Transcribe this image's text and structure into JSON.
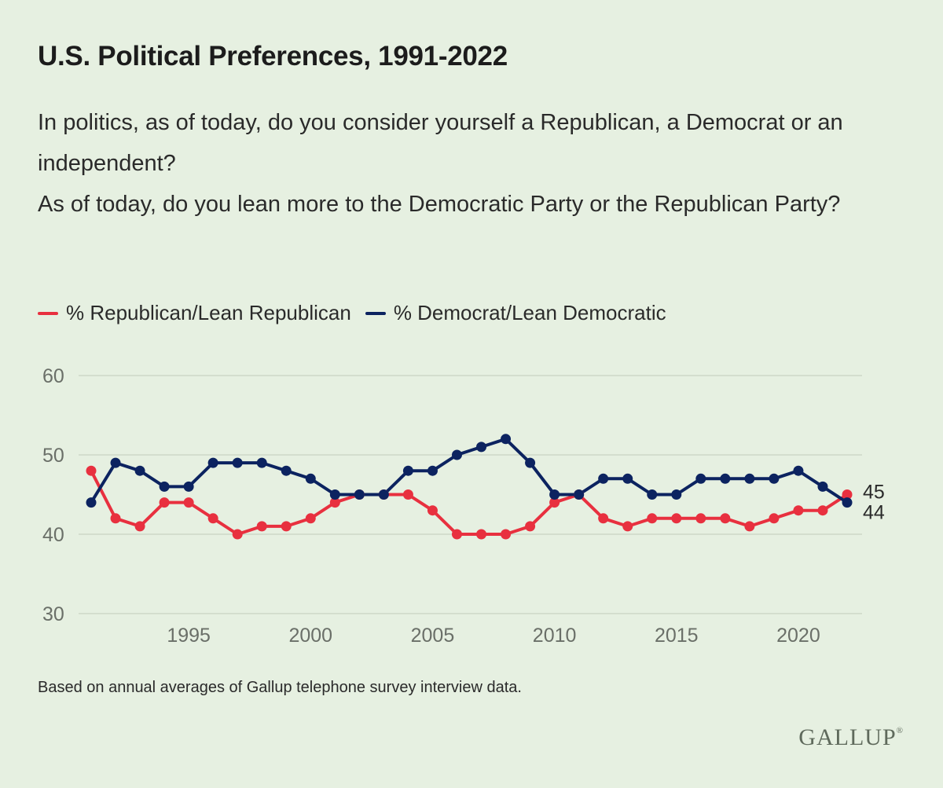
{
  "title": "U.S. Political Preferences, 1991-2022",
  "subtitle": {
    "line1": "In politics, as of today, do you consider yourself a Republican, a Democrat or an independent?",
    "line2": "As of today, do you lean more to the Democratic Party or the Republican Party?"
  },
  "legend": {
    "republican": "% Republican/Lean Republican",
    "democrat": "% Democrat/Lean Democratic"
  },
  "footnote": "Based on annual averages of Gallup telephone survey interview data.",
  "logo": "GALLUP",
  "colors": {
    "background": "#e6f0e1",
    "republican": "#e8303f",
    "democrat": "#0c2360",
    "grid": "#c9d3c4",
    "tick_label": "#6a6f68"
  },
  "chart_data": {
    "type": "line",
    "x": [
      1991,
      1992,
      1993,
      1994,
      1995,
      1996,
      1997,
      1998,
      1999,
      2000,
      2001,
      2002,
      2003,
      2004,
      2005,
      2006,
      2007,
      2008,
      2009,
      2010,
      2011,
      2012,
      2013,
      2014,
      2015,
      2016,
      2017,
      2018,
      2019,
      2020,
      2021,
      2022
    ],
    "series": [
      {
        "name": "% Republican/Lean Republican",
        "color": "#e8303f",
        "values": [
          48,
          42,
          41,
          44,
          44,
          42,
          40,
          41,
          41,
          42,
          44,
          45,
          45,
          45,
          43,
          40,
          40,
          40,
          41,
          44,
          45,
          42,
          41,
          42,
          42,
          42,
          42,
          41,
          42,
          43,
          43,
          45
        ],
        "end_label": "45"
      },
      {
        "name": "% Democrat/Lean Democratic",
        "color": "#0c2360",
        "values": [
          44,
          49,
          48,
          46,
          46,
          49,
          49,
          49,
          48,
          47,
          45,
          45,
          45,
          48,
          48,
          50,
          51,
          52,
          49,
          45,
          45,
          47,
          47,
          45,
          45,
          47,
          47,
          47,
          47,
          48,
          46,
          44
        ],
        "end_label": "44"
      }
    ],
    "xticks": [
      1995,
      2000,
      2005,
      2010,
      2015,
      2020
    ],
    "yticks": [
      30,
      40,
      50,
      60
    ],
    "ylim": [
      30,
      60
    ],
    "xlim": [
      1991,
      2022
    ],
    "grid": "horizontal",
    "legend_position": "top-left"
  }
}
